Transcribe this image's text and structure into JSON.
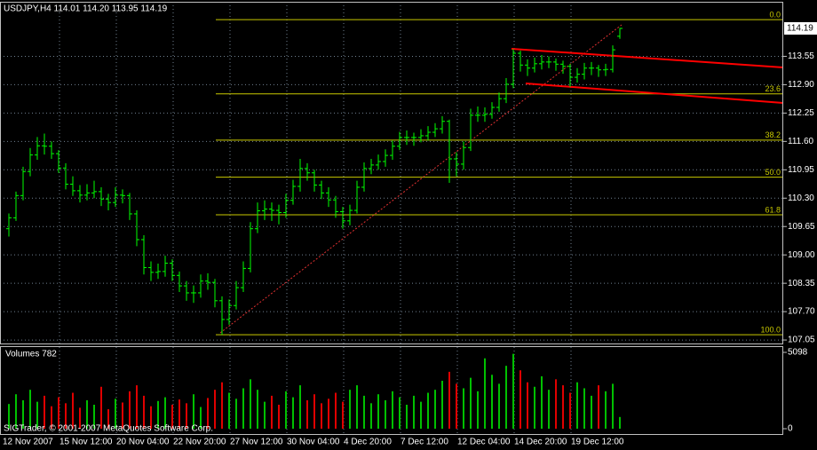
{
  "chart_data": {
    "type": "ohlc",
    "header": "USDJPY,H4  114.01 114.20 113.95 114.19",
    "copyright": "SIGTrader, © 2001-2007 MetaQuotes Software Corp.",
    "color": "#00ff00",
    "ylim": [
      106.97,
      114.8
    ],
    "yticks": [
      107.05,
      {
        "value": 107.7,
        "label": "107.70"
      },
      108.35,
      {
        "value": 109.0,
        "label": "109.00"
      },
      109.65,
      {
        "value": 110.3,
        "label": "110.30"
      },
      110.95,
      {
        "value": 111.6,
        "label": "111.60"
      },
      112.25,
      {
        "value": 112.9,
        "label": "112.90"
      },
      113.55
    ],
    "current_price": 114.19,
    "grid": true,
    "x_labels": [
      "12 Nov 2007",
      "15 Nov 12:00",
      "20 Nov 04:00",
      "22 Nov 20:00",
      "27 Nov 12:00",
      "30 Nov 04:00",
      "4 Dec 20:00",
      "7 Dec 12:00",
      "12 Dec 04:00",
      "14 Dec 20:00",
      "19 Dec 12:00"
    ],
    "fibonacci": {
      "color": "#c8c800",
      "levels": [
        {
          "label": "0.0",
          "price": 114.39
        },
        {
          "label": "23.6",
          "price": 112.69
        },
        {
          "label": "38.2",
          "price": 111.63
        },
        {
          "label": "50.0",
          "price": 110.78
        },
        {
          "label": "61.8",
          "price": 109.92
        },
        {
          "label": "100.0",
          "price": 107.17
        }
      ]
    },
    "candles": [
      [
        109.6,
        109.95,
        109.42,
        109.85
      ],
      [
        109.85,
        110.45,
        109.78,
        110.36
      ],
      [
        110.36,
        111.02,
        110.25,
        110.91
      ],
      [
        110.91,
        111.45,
        110.8,
        111.29
      ],
      [
        111.29,
        111.7,
        111.18,
        111.5
      ],
      [
        111.5,
        111.78,
        111.3,
        111.49
      ],
      [
        111.49,
        111.6,
        111.2,
        111.32
      ],
      [
        111.32,
        111.4,
        110.88,
        110.99
      ],
      [
        110.99,
        111.1,
        110.5,
        110.62
      ],
      [
        110.62,
        110.8,
        110.35,
        110.47
      ],
      [
        110.47,
        110.6,
        110.2,
        110.37
      ],
      [
        110.37,
        110.62,
        110.25,
        110.42
      ],
      [
        110.42,
        110.7,
        110.3,
        110.45
      ],
      [
        110.45,
        110.55,
        110.12,
        110.28
      ],
      [
        110.28,
        110.4,
        110.02,
        110.2
      ],
      [
        110.2,
        110.55,
        110.1,
        110.37
      ],
      [
        110.37,
        110.5,
        110.18,
        110.36
      ],
      [
        110.36,
        110.42,
        109.8,
        109.94
      ],
      [
        109.94,
        110.02,
        109.2,
        109.35
      ],
      [
        109.35,
        109.45,
        108.55,
        108.71
      ],
      [
        108.71,
        108.85,
        108.4,
        108.6
      ],
      [
        108.6,
        108.8,
        108.45,
        108.62
      ],
      [
        108.62,
        108.98,
        108.5,
        108.81
      ],
      [
        108.81,
        108.9,
        108.4,
        108.53
      ],
      [
        108.53,
        108.62,
        108.15,
        108.29
      ],
      [
        108.29,
        108.4,
        107.95,
        108.13
      ],
      [
        108.13,
        108.3,
        107.9,
        108.13
      ],
      [
        108.13,
        108.55,
        108.02,
        108.4
      ],
      [
        108.4,
        108.58,
        108.2,
        108.37
      ],
      [
        108.37,
        108.45,
        107.8,
        107.95
      ],
      [
        107.95,
        108.05,
        107.17,
        107.52
      ],
      [
        107.52,
        107.98,
        107.4,
        107.84
      ],
      [
        107.84,
        108.4,
        107.75,
        108.25
      ],
      [
        108.25,
        108.85,
        108.15,
        108.69
      ],
      [
        108.69,
        109.75,
        108.6,
        109.6
      ],
      [
        109.6,
        110.2,
        109.5,
        110.01
      ],
      [
        110.01,
        110.25,
        109.8,
        110.05
      ],
      [
        110.05,
        110.2,
        109.78,
        110.02
      ],
      [
        110.02,
        110.15,
        109.7,
        109.97
      ],
      [
        109.97,
        110.4,
        109.85,
        110.25
      ],
      [
        110.25,
        110.72,
        110.15,
        110.57
      ],
      [
        110.57,
        111.2,
        110.45,
        110.98
      ],
      [
        110.98,
        111.1,
        110.7,
        110.88
      ],
      [
        110.88,
        110.95,
        110.45,
        110.6
      ],
      [
        110.6,
        110.7,
        110.28,
        110.42
      ],
      [
        110.42,
        110.55,
        110.1,
        110.26
      ],
      [
        110.26,
        110.35,
        109.85,
        109.99
      ],
      [
        109.99,
        110.1,
        109.6,
        109.78
      ],
      [
        109.78,
        110.15,
        109.68,
        110.02
      ],
      [
        110.02,
        110.7,
        109.95,
        110.55
      ],
      [
        110.55,
        111.12,
        110.45,
        110.98
      ],
      [
        110.98,
        111.2,
        110.85,
        111.06
      ],
      [
        111.06,
        111.3,
        110.95,
        111.14
      ],
      [
        111.14,
        111.42,
        111.02,
        111.28
      ],
      [
        111.28,
        111.62,
        111.18,
        111.49
      ],
      [
        111.49,
        111.82,
        111.4,
        111.69
      ],
      [
        111.69,
        111.85,
        111.52,
        111.69
      ],
      [
        111.69,
        111.8,
        111.5,
        111.69
      ],
      [
        111.69,
        111.88,
        111.58,
        111.73
      ],
      [
        111.73,
        111.95,
        111.62,
        111.81
      ],
      [
        111.81,
        112.02,
        111.7,
        111.89
      ],
      [
        111.89,
        112.18,
        111.78,
        112.06
      ],
      [
        112.06,
        112.1,
        110.65,
        111.2
      ],
      [
        111.2,
        111.35,
        110.8,
        111.08
      ],
      [
        111.08,
        111.6,
        110.95,
        111.46
      ],
      [
        111.46,
        112.35,
        111.38,
        112.2
      ],
      [
        112.2,
        112.4,
        112.05,
        112.2
      ],
      [
        112.2,
        112.38,
        112.05,
        112.22
      ],
      [
        112.22,
        112.5,
        112.12,
        112.38
      ],
      [
        112.38,
        112.72,
        112.28,
        112.58
      ],
      [
        112.58,
        113.05,
        112.48,
        112.91
      ],
      [
        112.91,
        113.72,
        112.82,
        113.62
      ],
      [
        113.62,
        113.68,
        113.2,
        113.35
      ],
      [
        113.35,
        113.48,
        113.1,
        113.28
      ],
      [
        113.28,
        113.52,
        113.18,
        113.38
      ],
      [
        113.38,
        113.58,
        113.25,
        113.42
      ],
      [
        113.42,
        113.55,
        113.28,
        113.42
      ],
      [
        113.42,
        113.5,
        113.22,
        113.37
      ],
      [
        113.37,
        113.45,
        113.15,
        113.32
      ],
      [
        113.32,
        113.38,
        112.85,
        113.07
      ],
      [
        113.07,
        113.28,
        112.95,
        113.14
      ],
      [
        113.14,
        113.4,
        113.02,
        113.28
      ],
      [
        113.28,
        113.42,
        113.12,
        113.28
      ],
      [
        113.28,
        113.35,
        113.08,
        113.24
      ],
      [
        113.24,
        113.38,
        113.1,
        113.25
      ],
      [
        113.25,
        113.8,
        113.18,
        113.7
      ],
      [
        114.01,
        114.2,
        113.95,
        114.19
      ]
    ],
    "volume": {
      "label": "Volumes 782",
      "ylim": [
        0,
        5098
      ],
      "yticks": [
        0,
        5098
      ],
      "values": [
        1650,
        2300,
        1900,
        2600,
        1800,
        2200,
        1500,
        2100,
        1700,
        2400,
        1400,
        1900,
        1600,
        2800,
        1300,
        2000,
        1750,
        2500,
        2900,
        2200,
        1500,
        1850,
        2100,
        1600,
        1950,
        1700,
        2300,
        1450,
        2050,
        2600,
        3100,
        2400,
        2000,
        2700,
        3300,
        2600,
        1800,
        2200,
        1600,
        2500,
        2100,
        2900,
        1900,
        2300,
        1700,
        2000,
        2400,
        1800,
        2600,
        2900,
        2200,
        1700,
        2300,
        1900,
        2500,
        2100,
        1600,
        2200,
        1800,
        2400,
        2600,
        3200,
        3800,
        3000,
        2700,
        3400,
        2500,
        4700,
        3600,
        3000,
        4200,
        5000,
        3900,
        3100,
        2800,
        3500,
        2600,
        3300,
        2900,
        2400,
        3100,
        2700,
        2200,
        2900,
        2500,
        3000,
        782
      ]
    }
  }
}
